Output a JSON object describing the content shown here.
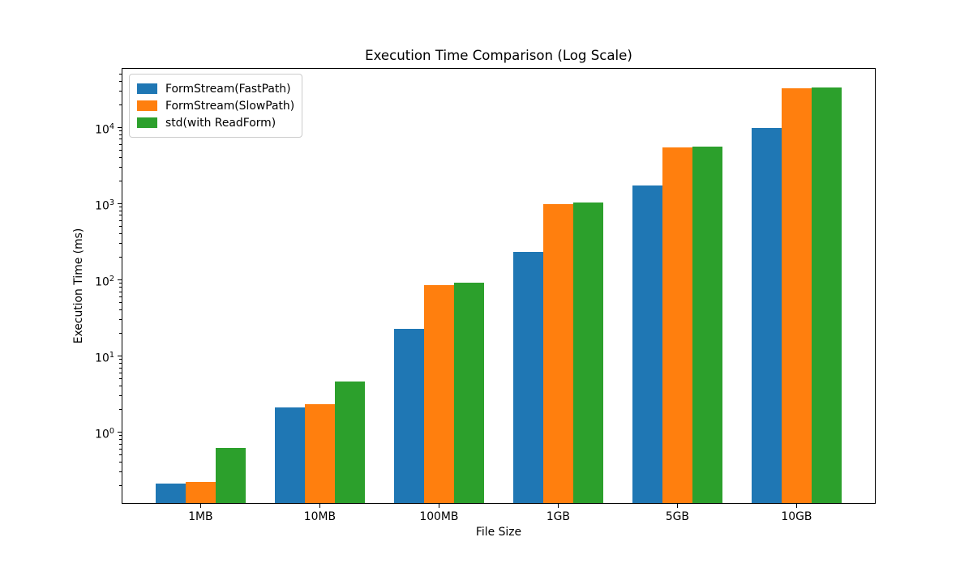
{
  "figure": {
    "title": "Execution Time Comparison (Log Scale)",
    "xlabel": "File Size",
    "ylabel": "Execution Time (ms)"
  },
  "legend": {
    "position": "upper left",
    "items": [
      {
        "label": "FormStream(FastPath)",
        "color": "#1f77b4"
      },
      {
        "label": "FormStream(SlowPath)",
        "color": "#ff7f0e"
      },
      {
        "label": "std(with ReadForm)",
        "color": "#2ca02c"
      }
    ]
  },
  "chart_data": {
    "type": "bar",
    "yscale": "log",
    "title": "Execution Time Comparison (Log Scale)",
    "xlabel": "File Size",
    "ylabel": "Execution Time (ms)",
    "categories": [
      "1MB",
      "10MB",
      "100MB",
      "1GB",
      "5GB",
      "10GB"
    ],
    "series": [
      {
        "name": "FormStream(FastPath)",
        "color": "#1f77b4",
        "values": [
          0.21,
          2.1,
          22.5,
          230,
          1700,
          9700
        ]
      },
      {
        "name": "FormStream(SlowPath)",
        "color": "#ff7f0e",
        "values": [
          0.22,
          2.3,
          84,
          980,
          5400,
          32500
        ]
      },
      {
        "name": "std(with ReadForm)",
        "color": "#2ca02c",
        "values": [
          0.61,
          4.6,
          90,
          1020,
          5500,
          33000
        ]
      }
    ],
    "ylim": [
      0.113,
      59500
    ],
    "ytick_exponents": [
      0,
      1,
      2,
      3,
      4
    ],
    "grid": false,
    "legend_position": "upper left",
    "bar_width_fraction": 0.25
  }
}
